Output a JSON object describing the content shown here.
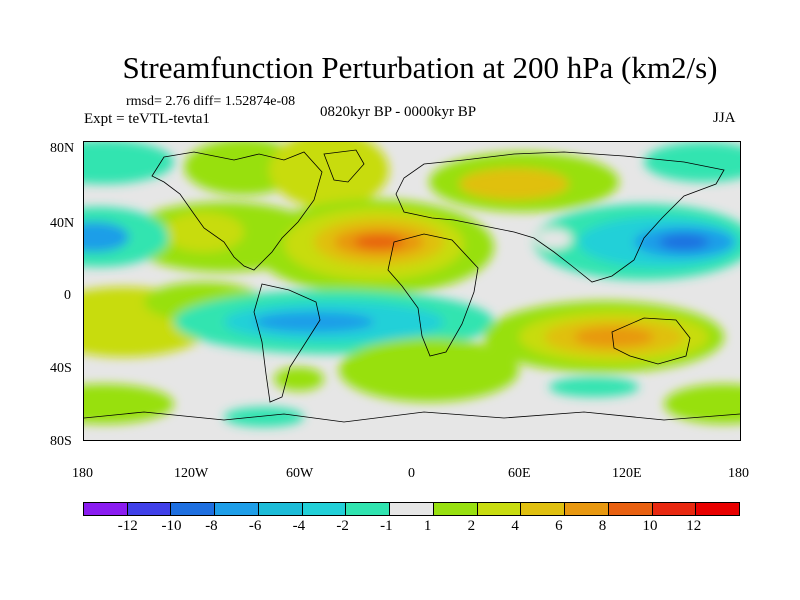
{
  "title": "Streamfunction Perturbation at 200 hPa (km2/s)",
  "stats": "rmsd= 2.76 diff= 1.52874e-08",
  "experiment": "Expt = teVTL-tevta1",
  "period": "0820kyr BP - 0000kyr BP",
  "season": "JJA",
  "lat_labels": [
    "80N",
    "40N",
    "0",
    "40S",
    "80S"
  ],
  "lon_labels": [
    "180",
    "120W",
    "60W",
    "0",
    "60E",
    "120E",
    "180"
  ],
  "colorbar": {
    "labels": [
      "-12",
      "-10",
      "-8",
      "-6",
      "-4",
      "-2",
      "-1",
      "1",
      "2",
      "4",
      "6",
      "8",
      "10",
      "12"
    ],
    "colors": [
      "#8a1cf0",
      "#4040e8",
      "#1e6fe0",
      "#1e9ee8",
      "#1cbcd8",
      "#22d0d8",
      "#30e4b0",
      "#e6e6e6",
      "#98e010",
      "#c8dc10",
      "#e0c010",
      "#e89810",
      "#e86010",
      "#e82810",
      "#e80000"
    ]
  }
}
